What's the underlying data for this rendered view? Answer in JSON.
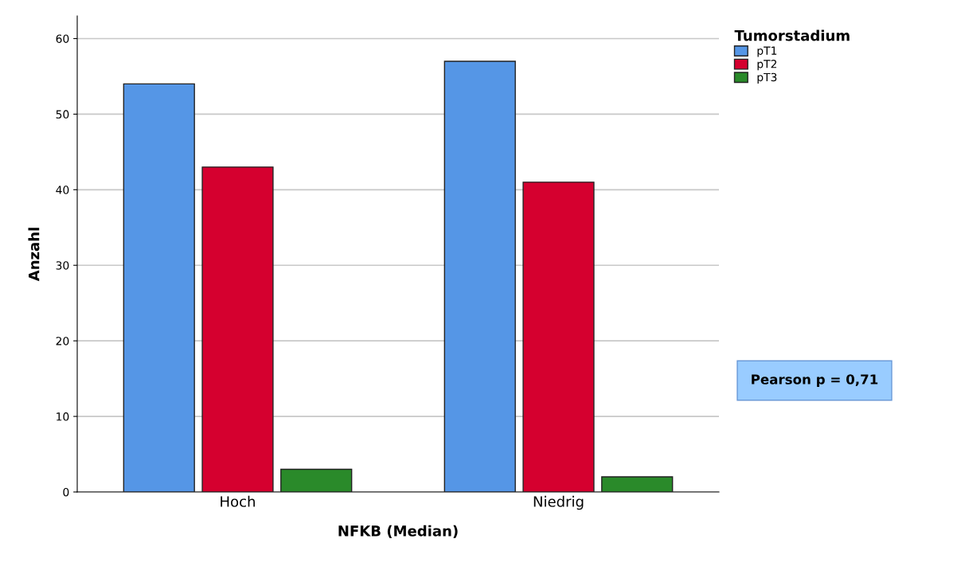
{
  "chart_data": {
    "type": "bar",
    "xlabel": "NFKB (Median)",
    "ylabel": "Anzahl",
    "legend_title": "Tumorstadium",
    "categories": [
      "Hoch",
      "Niedrig"
    ],
    "series": [
      {
        "name": "pT1",
        "color": "#5596e6",
        "values": [
          54,
          57
        ]
      },
      {
        "name": "pT2",
        "color": "#d5002f",
        "values": [
          43,
          41
        ]
      },
      {
        "name": "pT3",
        "color": "#2a8a2a",
        "values": [
          3,
          2
        ]
      }
    ],
    "ylim": [
      0,
      63
    ],
    "yticks": [
      0,
      10,
      20,
      30,
      40,
      50,
      60
    ],
    "grid": "y",
    "legend": "top right",
    "annotations": [
      "Pearson p = 0,71"
    ]
  }
}
